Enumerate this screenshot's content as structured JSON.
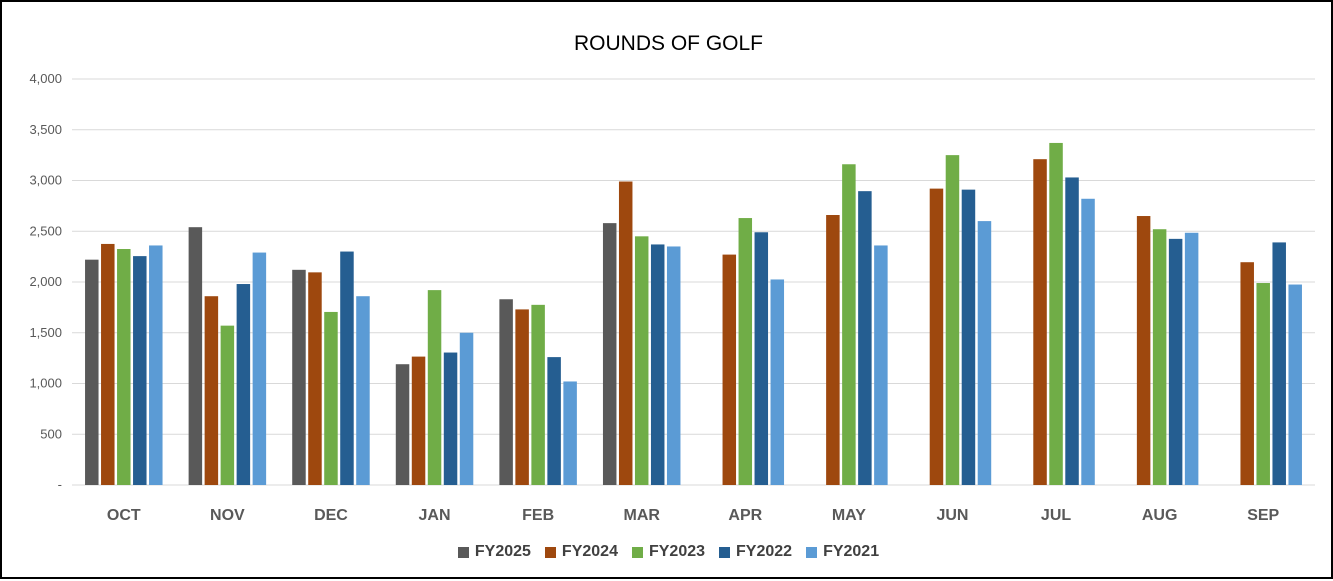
{
  "chart_data": {
    "type": "bar",
    "title": "ROUNDS OF GOLF",
    "xlabel": "",
    "ylabel": "",
    "ylim": [
      0,
      4000
    ],
    "yticks": [
      0,
      500,
      1000,
      1500,
      2000,
      2500,
      3000,
      3500,
      4000
    ],
    "ytick_labels": [
      "-",
      "500",
      "1,000",
      "1,500",
      "2,000",
      "2,500",
      "3,000",
      "3,500",
      "4,000"
    ],
    "grid": true,
    "legend_position": "bottom",
    "categories": [
      "OCT",
      "NOV",
      "DEC",
      "JAN",
      "FEB",
      "MAR",
      "APR",
      "MAY",
      "JUN",
      "JUL",
      "AUG",
      "SEP"
    ],
    "series": [
      {
        "name": "FY2025",
        "color": "#595959",
        "values": [
          2220,
          2540,
          2120,
          1190,
          1830,
          2580,
          null,
          null,
          null,
          null,
          null,
          null
        ]
      },
      {
        "name": "FY2024",
        "color": "#9E480E",
        "values": [
          2375,
          1860,
          2095,
          1265,
          1730,
          2990,
          2270,
          2660,
          2920,
          3210,
          2650,
          2195
        ]
      },
      {
        "name": "FY2023",
        "color": "#70AD47",
        "values": [
          2325,
          1570,
          1705,
          1920,
          1775,
          2450,
          2630,
          3160,
          3250,
          3370,
          2520,
          1990
        ]
      },
      {
        "name": "FY2022",
        "color": "#255E91",
        "values": [
          2255,
          1980,
          2300,
          1305,
          1260,
          2370,
          2490,
          2895,
          2910,
          3030,
          2425,
          2390
        ]
      },
      {
        "name": "FY2021",
        "color": "#5B9BD5",
        "values": [
          2360,
          2290,
          1860,
          1500,
          1020,
          2350,
          2025,
          2360,
          2600,
          2820,
          2485,
          1975
        ]
      }
    ]
  }
}
